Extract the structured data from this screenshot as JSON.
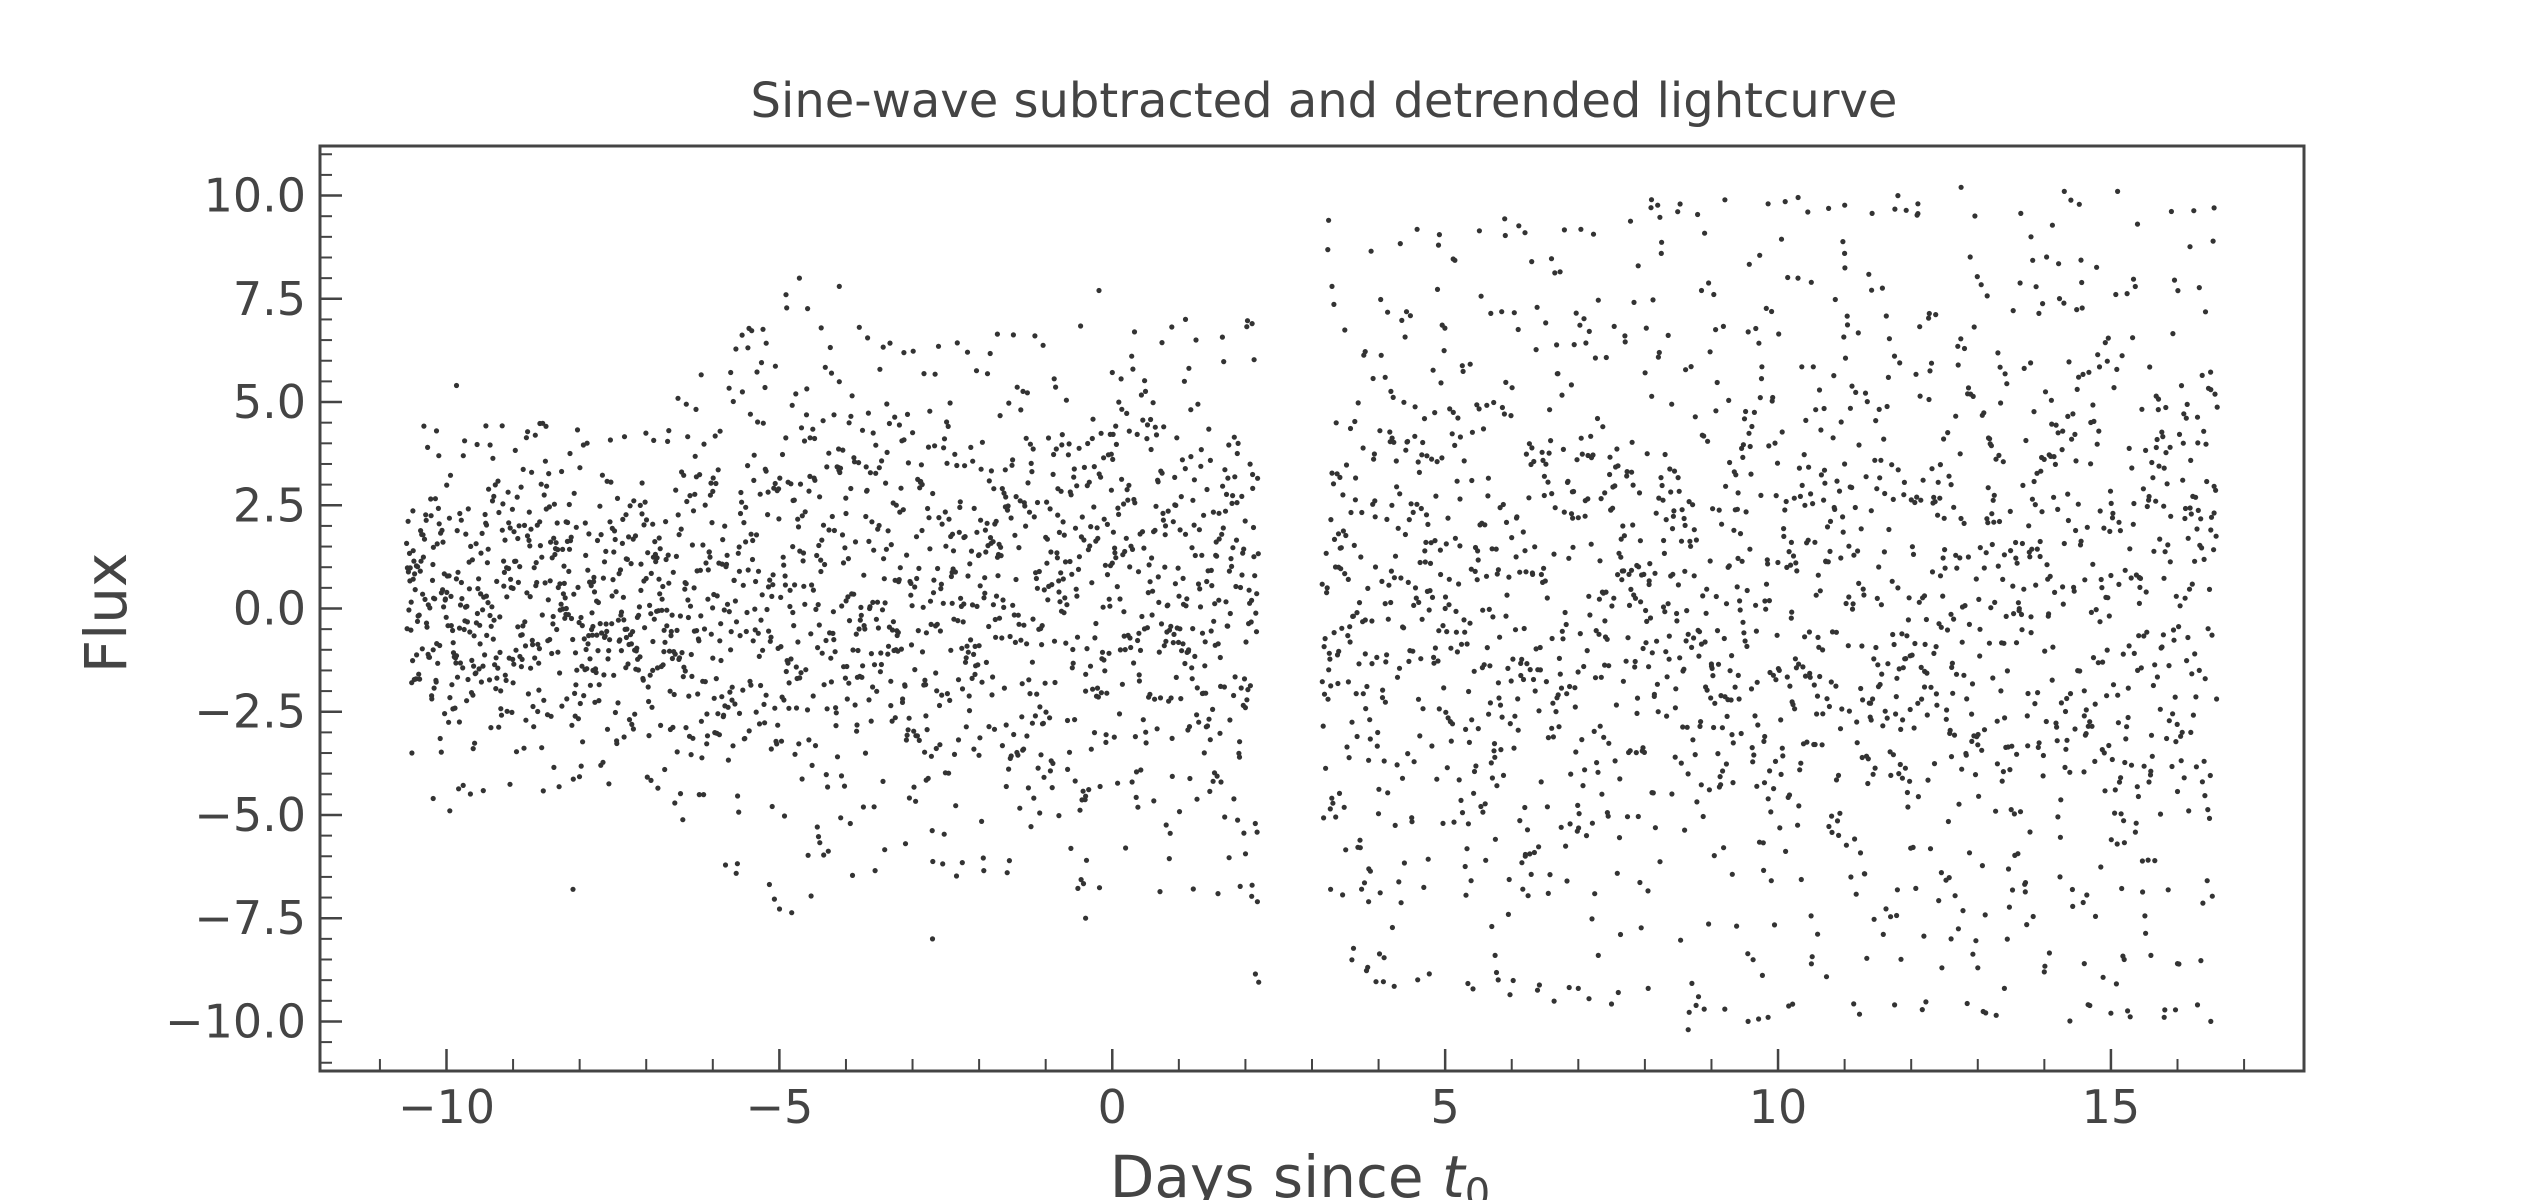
{
  "chart_data": {
    "type": "scatter",
    "title": "Sine-wave subtracted and detrended lightcurve",
    "xlabel": "Days since ",
    "xlabel_math_base": "t",
    "xlabel_math_sub": "0",
    "ylabel": "Flux",
    "xlim": [
      -11.9,
      17.9
    ],
    "ylim": [
      -11.2,
      11.2
    ],
    "x_ticks": [
      -10,
      -5,
      0,
      5,
      10,
      15
    ],
    "x_tick_labels": [
      "−10",
      "−5",
      "0",
      "5",
      "10",
      "15"
    ],
    "y_ticks": [
      10,
      7.5,
      5,
      2.5,
      0,
      -2.5,
      -5,
      -7.5,
      -10
    ],
    "y_tick_labels": [
      "10.0",
      "7.5",
      "5.0",
      "2.5",
      "0.0",
      "−2.5",
      "−5.0",
      "−7.5",
      "−10.0"
    ],
    "grid": false,
    "marker_color": "#333333",
    "segments": [
      {
        "x_start": -10.6,
        "x_end": 2.2,
        "n_points": 1750,
        "envelope": [
          [
            -10.6,
            4.5
          ],
          [
            -7.0,
            4.5
          ],
          [
            -5.0,
            7.5
          ],
          [
            -3.0,
            6.5
          ],
          [
            0.0,
            7.0
          ],
          [
            2.2,
            7.0
          ]
        ]
      },
      {
        "x_start": 3.15,
        "x_end": 16.6,
        "n_points": 1750,
        "envelope": [
          [
            3.15,
            9.0
          ],
          [
            6.0,
            9.5
          ],
          [
            9.0,
            10.0
          ],
          [
            12.0,
            10.0
          ],
          [
            16.6,
            10.0
          ]
        ]
      }
    ],
    "points": [
      [
        -10.52,
        -3.5
      ],
      [
        -10.2,
        -4.6
      ],
      [
        -9.95,
        -4.9
      ],
      [
        -10.15,
        4.3
      ],
      [
        -9.85,
        5.4
      ],
      [
        -8.1,
        -6.8
      ],
      [
        -4.9,
        7.6
      ],
      [
        -4.7,
        8.0
      ],
      [
        -4.1,
        7.8
      ],
      [
        -0.2,
        7.7
      ],
      [
        -2.7,
        -8.0
      ],
      [
        -0.4,
        -7.5
      ],
      [
        2.1,
        -6.7
      ],
      [
        2.18,
        -7.1
      ],
      [
        2.15,
        -8.85
      ],
      [
        2.2,
        -9.05
      ],
      [
        2.1,
        6.9
      ],
      [
        1.1,
        7.0
      ],
      [
        3.25,
        9.4
      ],
      [
        3.3,
        7.8
      ],
      [
        3.28,
        -6.8
      ],
      [
        3.85,
        -7.1
      ],
      [
        4.1,
        5.6
      ],
      [
        4.9,
        8.8
      ],
      [
        5.75,
        -8.4
      ],
      [
        5.7,
        -7.7
      ],
      [
        6.2,
        9.1
      ],
      [
        6.3,
        8.4
      ],
      [
        6.55,
        -6.9
      ],
      [
        7.0,
        -9.2
      ],
      [
        7.3,
        -8.4
      ],
      [
        7.6,
        -9.3
      ],
      [
        7.9,
        8.3
      ],
      [
        8.05,
        -9.2
      ],
      [
        8.1,
        9.9
      ],
      [
        8.65,
        -10.2
      ],
      [
        8.85,
        7.7
      ],
      [
        9.2,
        -9.7
      ],
      [
        9.55,
        -10.0
      ],
      [
        9.85,
        -9.9
      ],
      [
        9.85,
        9.8
      ],
      [
        10.3,
        8.0
      ],
      [
        10.5,
        7.9
      ],
      [
        11.0,
        8.6
      ],
      [
        11.75,
        -9.6
      ],
      [
        11.8,
        10.0
      ],
      [
        12.1,
        9.8
      ],
      [
        12.6,
        -8.0
      ],
      [
        12.75,
        10.2
      ],
      [
        13.0,
        -8.7
      ],
      [
        13.4,
        -9.2
      ],
      [
        13.8,
        9.0
      ],
      [
        14.0,
        -8.8
      ],
      [
        14.3,
        10.1
      ],
      [
        14.6,
        -8.6
      ],
      [
        15.0,
        -9.8
      ],
      [
        15.1,
        10.1
      ],
      [
        15.2,
        -8.5
      ],
      [
        15.6,
        -8.4
      ],
      [
        15.8,
        -9.9
      ],
      [
        16.0,
        -8.6
      ],
      [
        16.3,
        -9.6
      ],
      [
        16.5,
        -10.0
      ],
      [
        16.55,
        9.7
      ],
      [
        16.4,
        -3.7
      ],
      [
        16.5,
        5.3
      ],
      [
        -10.5,
        1.4
      ],
      [
        -10.2,
        -1.0
      ],
      [
        -9.8,
        2.3
      ],
      [
        -9.4,
        0.3
      ],
      [
        -9.0,
        -1.8
      ],
      [
        -8.6,
        2.1
      ],
      [
        -8.2,
        0.0
      ],
      [
        -7.8,
        -1.5
      ],
      [
        -7.3,
        1.2
      ],
      [
        -6.9,
        -0.8
      ],
      [
        -6.4,
        0.6
      ],
      [
        -6.0,
        -1.2
      ],
      [
        -5.6,
        0.9
      ],
      [
        -5.2,
        -2.1
      ],
      [
        -4.8,
        1.5
      ],
      [
        -4.4,
        -0.4
      ],
      [
        -4.0,
        2.3
      ],
      [
        -3.6,
        -1.9
      ],
      [
        -3.2,
        0.7
      ],
      [
        -2.8,
        -2.6
      ],
      [
        -2.4,
        1.8
      ],
      [
        -2.0,
        -0.9
      ],
      [
        -1.6,
        2.7
      ],
      [
        -1.2,
        -1.3
      ],
      [
        -0.8,
        0.4
      ],
      [
        -0.4,
        -2.0
      ],
      [
        0.0,
        1.1
      ],
      [
        0.4,
        -0.6
      ],
      [
        0.8,
        2.0
      ],
      [
        1.2,
        -1.7
      ],
      [
        1.6,
        0.2
      ],
      [
        2.0,
        -2.4
      ],
      [
        3.4,
        1.0
      ],
      [
        3.8,
        -1.1
      ],
      [
        4.2,
        2.5
      ],
      [
        4.6,
        -2.2
      ],
      [
        5.0,
        0.0
      ],
      [
        5.4,
        3.1
      ],
      [
        5.8,
        -1.8
      ],
      [
        6.2,
        1.4
      ],
      [
        6.6,
        -2.9
      ],
      [
        7.0,
        2.2
      ],
      [
        7.4,
        -0.3
      ],
      [
        7.8,
        3.3
      ],
      [
        8.2,
        -2.5
      ],
      [
        8.6,
        0.9
      ],
      [
        9.0,
        -1.4
      ],
      [
        9.4,
        2.8
      ],
      [
        9.8,
        -3.1
      ],
      [
        10.2,
        1.6
      ],
      [
        10.6,
        -0.7
      ],
      [
        11.0,
        3.5
      ],
      [
        11.4,
        -2.7
      ],
      [
        11.8,
        0.5
      ],
      [
        12.2,
        -1.9
      ],
      [
        12.6,
        3.0
      ],
      [
        13.0,
        -3.3
      ],
      [
        13.4,
        1.3
      ],
      [
        13.8,
        -0.2
      ],
      [
        14.2,
        2.4
      ],
      [
        14.6,
        -2.6
      ],
      [
        15.0,
        0.8
      ],
      [
        15.4,
        -1.5
      ],
      [
        15.8,
        3.4
      ],
      [
        16.2,
        -3.0
      ],
      [
        16.5,
        1.9
      ]
    ]
  }
}
